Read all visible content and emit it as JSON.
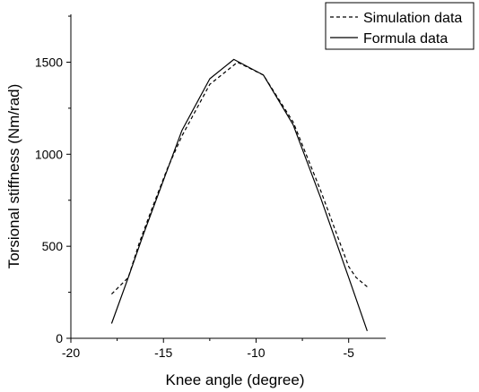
{
  "chart_data": {
    "type": "line",
    "title": "",
    "xlabel": "Knee angle (degree)",
    "ylabel": "Torsional stiffness (Nm/rad)",
    "xlim": [
      -20,
      -3
    ],
    "ylim": [
      0,
      1760
    ],
    "xticks": [
      -20,
      -15,
      -10,
      -5
    ],
    "xtick_labels": [
      "-20",
      "-15",
      "-10",
      "-5"
    ],
    "yticks": [
      0,
      500,
      1000,
      1500
    ],
    "ytick_labels": [
      "0",
      "500",
      "1000",
      "1500"
    ],
    "grid": false,
    "legend_position": "top-right",
    "series": [
      {
        "name": "Simulation data",
        "style": "dashed",
        "color": "#000000",
        "x": [
          -17.8,
          -16.9,
          -16.3,
          -15.6,
          -14.8,
          -14.0,
          -12.5,
          -11.0,
          -9.6,
          -8.0,
          -6.5,
          -5.0,
          -4.6,
          -4.0
        ],
        "y": [
          240,
          330,
          520,
          710,
          920,
          1100,
          1380,
          1500,
          1430,
          1175,
          800,
          390,
          330,
          280
        ]
      },
      {
        "name": "Formula data",
        "style": "solid",
        "color": "#000000",
        "x": [
          -17.8,
          -16.9,
          -16.1,
          -14.0,
          -12.5,
          -11.2,
          -9.6,
          -8.0,
          -6.5,
          -5.0,
          -4.0
        ],
        "y": [
          80,
          330,
          560,
          1130,
          1410,
          1515,
          1430,
          1160,
          760,
          330,
          40
        ]
      }
    ]
  }
}
